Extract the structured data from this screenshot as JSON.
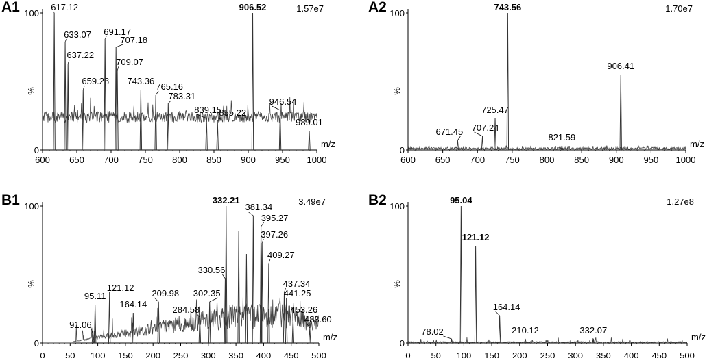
{
  "chart_data": [
    {
      "panel": "A1",
      "type": "line",
      "xlabel": "m/z",
      "ylabel": "%",
      "intensity": "1.57e7",
      "xlim": [
        600,
        1000
      ],
      "ylim": [
        0,
        100
      ],
      "xticks": [
        "600",
        "650",
        "700",
        "750",
        "800",
        "850",
        "900",
        "950",
        "1000"
      ],
      "yticks": [
        "0",
        "100"
      ],
      "baseline": [
        20,
        28
      ],
      "peaks": [
        {
          "mz": 617.12,
          "rel": 100,
          "label": "617.12",
          "bold": false
        },
        {
          "mz": 633.07,
          "rel": 79,
          "label": "633.07",
          "bold": false
        },
        {
          "mz": 637.22,
          "rel": 63,
          "label": "637.22",
          "bold": false
        },
        {
          "mz": 659.28,
          "rel": 44,
          "label": "659.28",
          "bold": false
        },
        {
          "mz": 691.17,
          "rel": 81,
          "label": "691.17",
          "bold": false
        },
        {
          "mz": 707.18,
          "rel": 75,
          "label": "707.18",
          "bold": false
        },
        {
          "mz": 709.07,
          "rel": 58,
          "label": "709.07",
          "bold": false
        },
        {
          "mz": 743.36,
          "rel": 44,
          "label": "743.36",
          "bold": false
        },
        {
          "mz": 765.16,
          "rel": 40,
          "label": "765.16",
          "bold": false
        },
        {
          "mz": 783.31,
          "rel": 34,
          "label": "783.31",
          "bold": false
        },
        {
          "mz": 839.15,
          "rel": 23,
          "label": "839.15",
          "bold": false
        },
        {
          "mz": 855.22,
          "rel": 21,
          "label": "855.22",
          "bold": false
        },
        {
          "mz": 906.52,
          "rel": 100,
          "label": "906.52",
          "bold": true
        },
        {
          "mz": 946.54,
          "rel": 29,
          "label": "946.54",
          "bold": false
        },
        {
          "mz": 989.01,
          "rel": 14,
          "label": "989.01",
          "bold": false
        }
      ]
    },
    {
      "panel": "A2",
      "type": "line",
      "xlabel": "m/z",
      "ylabel": "%",
      "intensity": "1.70e7",
      "xlim": [
        600,
        1000
      ],
      "ylim": [
        0,
        100
      ],
      "xticks": [
        "600",
        "650",
        "700",
        "750",
        "800",
        "850",
        "900",
        "950",
        "1000"
      ],
      "yticks": [
        "0",
        "100"
      ],
      "baseline": [
        0,
        2
      ],
      "peaks": [
        {
          "mz": 671.45,
          "rel": 7,
          "label": "671.45",
          "bold": false
        },
        {
          "mz": 707.24,
          "rel": 10,
          "label": "707.24",
          "bold": false
        },
        {
          "mz": 725.47,
          "rel": 23,
          "label": "725.47",
          "bold": false
        },
        {
          "mz": 743.56,
          "rel": 100,
          "label": "743.56",
          "bold": true
        },
        {
          "mz": 821.59,
          "rel": 3,
          "label": "821.59",
          "bold": false
        },
        {
          "mz": 906.41,
          "rel": 55,
          "label": "906.41",
          "bold": false
        }
      ]
    },
    {
      "panel": "B1",
      "type": "line",
      "xlabel": "m/z",
      "ylabel": "%",
      "intensity": "3.49e7",
      "xlim": [
        0,
        500
      ],
      "ylim": [
        0,
        100
      ],
      "xticks": [
        "0",
        "50",
        "100",
        "150",
        "200",
        "250",
        "300",
        "350",
        "400",
        "450",
        "500"
      ],
      "yticks": [
        "0",
        "100"
      ],
      "baseline": [
        8,
        20
      ],
      "peaks": [
        {
          "mz": 91.06,
          "rel": 7,
          "label": "91.06",
          "bold": false
        },
        {
          "mz": 95.11,
          "rel": 28,
          "label": "95.11",
          "bold": false
        },
        {
          "mz": 121.12,
          "rel": 34,
          "label": "121.12",
          "bold": false
        },
        {
          "mz": 164.14,
          "rel": 22,
          "label": "164.14",
          "bold": false
        },
        {
          "mz": 209.98,
          "rel": 30,
          "label": "209.98",
          "bold": false
        },
        {
          "mz": 284.58,
          "rel": 19,
          "label": "284.58",
          "bold": false
        },
        {
          "mz": 302.35,
          "rel": 30,
          "label": "302.35",
          "bold": false
        },
        {
          "mz": 330.56,
          "rel": 47,
          "label": "330.56",
          "bold": false
        },
        {
          "mz": 332.21,
          "rel": 100,
          "label": "332.21",
          "bold": true
        },
        {
          "mz": 355.0,
          "rel": 82,
          "label": "",
          "bold": false
        },
        {
          "mz": 369.0,
          "rel": 65,
          "label": "",
          "bold": false
        },
        {
          "mz": 381.34,
          "rel": 93,
          "label": "381.34",
          "bold": false
        },
        {
          "mz": 395.27,
          "rel": 85,
          "label": "395.27",
          "bold": false
        },
        {
          "mz": 397.26,
          "rel": 73,
          "label": "397.26",
          "bold": false
        },
        {
          "mz": 409.27,
          "rel": 58,
          "label": "409.27",
          "bold": false
        },
        {
          "mz": 437.34,
          "rel": 37,
          "label": "437.34",
          "bold": false
        },
        {
          "mz": 441.25,
          "rel": 30,
          "label": "441.25",
          "bold": false
        },
        {
          "mz": 453.26,
          "rel": 18,
          "label": "453.26",
          "bold": false
        },
        {
          "mz": 483.6,
          "rel": 11,
          "label": "483.60",
          "bold": false
        }
      ]
    },
    {
      "panel": "B2",
      "type": "line",
      "xlabel": "m/z",
      "ylabel": "%",
      "intensity": "1.27e8",
      "xlim": [
        0,
        500
      ],
      "ylim": [
        0,
        100
      ],
      "xticks": [
        "0",
        "50",
        "100",
        "150",
        "200",
        "250",
        "300",
        "350",
        "400",
        "450",
        "500"
      ],
      "yticks": [
        "0",
        "100"
      ],
      "baseline": [
        0,
        1
      ],
      "peaks": [
        {
          "mz": 78.02,
          "rel": 3,
          "label": "78.02",
          "bold": false
        },
        {
          "mz": 95.04,
          "rel": 100,
          "label": "95.04",
          "bold": true
        },
        {
          "mz": 121.12,
          "rel": 71,
          "label": "121.12",
          "bold": true
        },
        {
          "mz": 164.14,
          "rel": 20,
          "label": "164.14",
          "bold": false
        },
        {
          "mz": 210.12,
          "rel": 3,
          "label": "210.12",
          "bold": false
        },
        {
          "mz": 332.07,
          "rel": 3,
          "label": "332.07",
          "bold": false
        }
      ]
    }
  ]
}
